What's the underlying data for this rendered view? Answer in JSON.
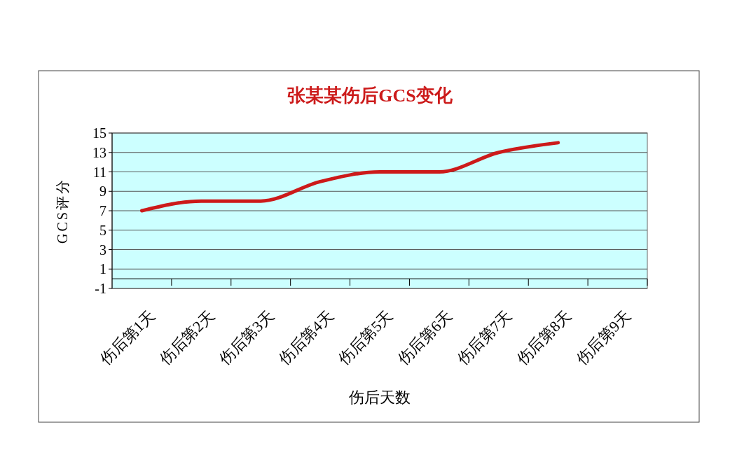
{
  "chart_data": {
    "type": "line",
    "title": "张某某伤后GCS变化",
    "xlabel": "伤后天数",
    "ylabel": "GCS评分",
    "categories": [
      "伤后第1天",
      "伤后第2天",
      "伤后第3天",
      "伤后第4天",
      "伤后第5天",
      "伤后第6天",
      "伤后第7天",
      "伤后第8天",
      "伤后第9天"
    ],
    "series": [
      {
        "color": "#cc1a1a",
        "values": [
          7,
          8,
          8,
          10,
          11,
          11,
          13,
          14,
          null
        ]
      }
    ],
    "ylim": [
      -1,
      15
    ],
    "yticks": [
      -1,
      1,
      3,
      5,
      7,
      9,
      11,
      13,
      15
    ],
    "grid": "y",
    "marker": "none",
    "line_style": "solid"
  }
}
